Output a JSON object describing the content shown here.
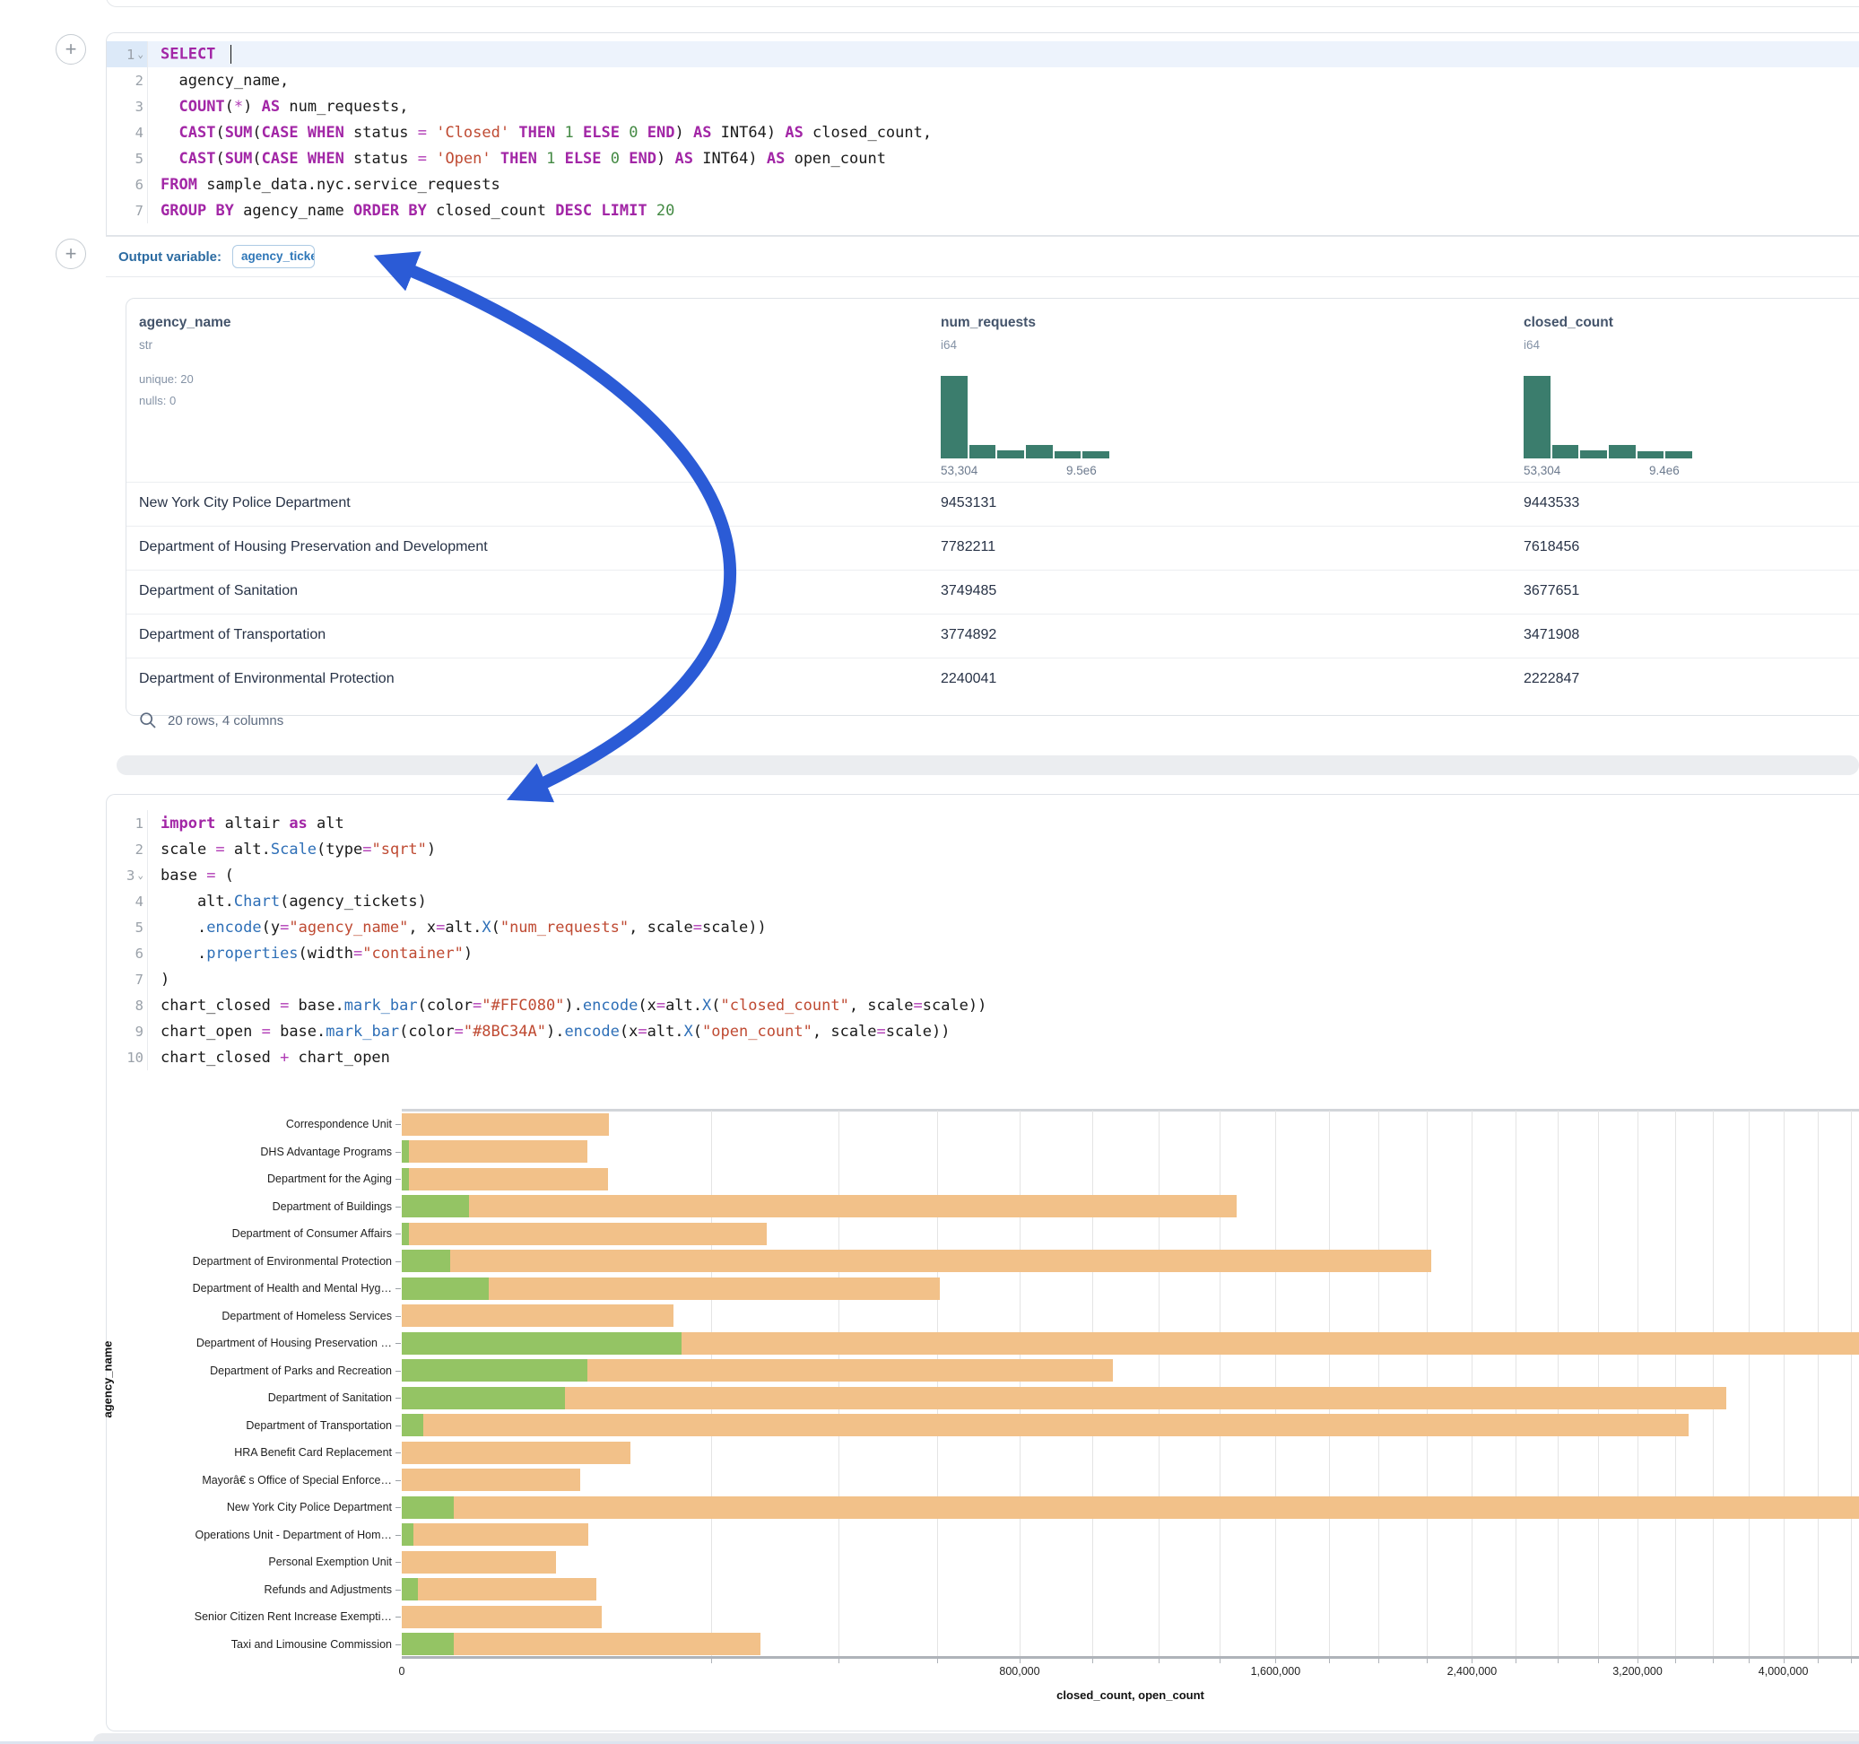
{
  "sql_cell": {
    "language": "sql",
    "lines": [
      {
        "num": "1",
        "fold": true,
        "hl": true,
        "cursor": true,
        "tokens": [
          [
            "k",
            "SELECT"
          ],
          [
            "p",
            " "
          ]
        ]
      },
      {
        "num": "2",
        "tokens": [
          [
            "p",
            "  agency_name,"
          ]
        ]
      },
      {
        "num": "3",
        "tokens": [
          [
            "p",
            "  "
          ],
          [
            "k",
            "COUNT"
          ],
          [
            "p",
            "("
          ],
          [
            "o",
            "*"
          ],
          [
            "p",
            ") "
          ],
          [
            "k",
            "AS"
          ],
          [
            "p",
            " num_requests,"
          ]
        ]
      },
      {
        "num": "4",
        "tokens": [
          [
            "p",
            "  "
          ],
          [
            "k",
            "CAST"
          ],
          [
            "p",
            "("
          ],
          [
            "k",
            "SUM"
          ],
          [
            "p",
            "("
          ],
          [
            "k",
            "CASE"
          ],
          [
            "p",
            " "
          ],
          [
            "k",
            "WHEN"
          ],
          [
            "p",
            " status "
          ],
          [
            "o",
            "="
          ],
          [
            "p",
            " "
          ],
          [
            "s",
            "'Closed'"
          ],
          [
            "p",
            " "
          ],
          [
            "k",
            "THEN"
          ],
          [
            "p",
            " "
          ],
          [
            "n",
            "1"
          ],
          [
            "p",
            " "
          ],
          [
            "k",
            "ELSE"
          ],
          [
            "p",
            " "
          ],
          [
            "n",
            "0"
          ],
          [
            "p",
            " "
          ],
          [
            "k",
            "END"
          ],
          [
            "p",
            ") "
          ],
          [
            "k",
            "AS"
          ],
          [
            "p",
            " INT64) "
          ],
          [
            "k",
            "AS"
          ],
          [
            "p",
            " closed_count,"
          ]
        ]
      },
      {
        "num": "5",
        "tokens": [
          [
            "p",
            "  "
          ],
          [
            "k",
            "CAST"
          ],
          [
            "p",
            "("
          ],
          [
            "k",
            "SUM"
          ],
          [
            "p",
            "("
          ],
          [
            "k",
            "CASE"
          ],
          [
            "p",
            " "
          ],
          [
            "k",
            "WHEN"
          ],
          [
            "p",
            " status "
          ],
          [
            "o",
            "="
          ],
          [
            "p",
            " "
          ],
          [
            "s",
            "'Open'"
          ],
          [
            "p",
            " "
          ],
          [
            "k",
            "THEN"
          ],
          [
            "p",
            " "
          ],
          [
            "n",
            "1"
          ],
          [
            "p",
            " "
          ],
          [
            "k",
            "ELSE"
          ],
          [
            "p",
            " "
          ],
          [
            "n",
            "0"
          ],
          [
            "p",
            " "
          ],
          [
            "k",
            "END"
          ],
          [
            "p",
            ") "
          ],
          [
            "k",
            "AS"
          ],
          [
            "p",
            " INT64) "
          ],
          [
            "k",
            "AS"
          ],
          [
            "p",
            " open_count"
          ]
        ]
      },
      {
        "num": "6",
        "tokens": [
          [
            "k",
            "FROM"
          ],
          [
            "p",
            " sample_data.nyc.service_requests"
          ]
        ]
      },
      {
        "num": "7",
        "tokens": [
          [
            "k",
            "GROUP"
          ],
          [
            "p",
            " "
          ],
          [
            "k",
            "BY"
          ],
          [
            "p",
            " agency_name "
          ],
          [
            "k",
            "ORDER"
          ],
          [
            "p",
            " "
          ],
          [
            "k",
            "BY"
          ],
          [
            "p",
            " closed_count "
          ],
          [
            "k",
            "DESC"
          ],
          [
            "p",
            " "
          ],
          [
            "k",
            "LIMIT"
          ],
          [
            "p",
            " "
          ],
          [
            "n",
            "20"
          ]
        ]
      }
    ]
  },
  "output_bar": {
    "label": "Output variable:",
    "variable": "agency_tickets"
  },
  "table": {
    "columns": [
      {
        "name": "agency_name",
        "dtype": "str",
        "stats": [
          "unique: 20",
          "nulls: 0"
        ],
        "x": 14
      },
      {
        "name": "num_requests",
        "dtype": "i64",
        "x": 908,
        "hist": {
          "bins": [
            1,
            0.16,
            0.1,
            0.16,
            0.09,
            0.09
          ],
          "min_label": "53,304",
          "max_label": "9.5e6"
        }
      },
      {
        "name": "closed_count",
        "dtype": "i64",
        "x": 1558,
        "hist": {
          "bins": [
            1,
            0.16,
            0.1,
            0.16,
            0.09,
            0.09
          ],
          "min_label": "53,304",
          "max_label": "9.4e6"
        }
      }
    ],
    "rows": [
      [
        "New York City Police Department",
        "9453131",
        "9443533"
      ],
      [
        "Department of Housing Preservation and Development",
        "7782211",
        "7618456"
      ],
      [
        "Department of Sanitation",
        "3749485",
        "3677651"
      ],
      [
        "Department of Transportation",
        "3774892",
        "3471908"
      ],
      [
        "Department of Environmental Protection",
        "2240041",
        "2222847"
      ]
    ],
    "footer": "20 rows, 4 columns"
  },
  "python_cell": {
    "language": "python",
    "lines": [
      {
        "num": "1",
        "tokens": [
          [
            "k",
            "import"
          ],
          [
            "p",
            " altair "
          ],
          [
            "k",
            "as"
          ],
          [
            "p",
            " alt"
          ]
        ]
      },
      {
        "num": "2",
        "tokens": [
          [
            "p",
            "scale "
          ],
          [
            "o",
            "="
          ],
          [
            "p",
            " alt."
          ],
          [
            "f",
            "Scale"
          ],
          [
            "p",
            "(type"
          ],
          [
            "o",
            "="
          ],
          [
            "s",
            "\"sqrt\""
          ],
          [
            "p",
            ")"
          ]
        ]
      },
      {
        "num": "3",
        "fold": true,
        "tokens": [
          [
            "p",
            "base "
          ],
          [
            "o",
            "="
          ],
          [
            "p",
            " ("
          ]
        ]
      },
      {
        "num": "4",
        "tokens": [
          [
            "p",
            "    alt."
          ],
          [
            "f",
            "Chart"
          ],
          [
            "p",
            "(agency_tickets)"
          ]
        ]
      },
      {
        "num": "5",
        "tokens": [
          [
            "p",
            "    ."
          ],
          [
            "f",
            "encode"
          ],
          [
            "p",
            "(y"
          ],
          [
            "o",
            "="
          ],
          [
            "s",
            "\"agency_name\""
          ],
          [
            "p",
            ", x"
          ],
          [
            "o",
            "="
          ],
          [
            "p",
            "alt."
          ],
          [
            "f",
            "X"
          ],
          [
            "p",
            "("
          ],
          [
            "s",
            "\"num_requests\""
          ],
          [
            "p",
            ", scale"
          ],
          [
            "o",
            "="
          ],
          [
            "p",
            "scale))"
          ]
        ]
      },
      {
        "num": "6",
        "tokens": [
          [
            "p",
            "    ."
          ],
          [
            "f",
            "properties"
          ],
          [
            "p",
            "(width"
          ],
          [
            "o",
            "="
          ],
          [
            "s",
            "\"container\""
          ],
          [
            "p",
            ")"
          ]
        ]
      },
      {
        "num": "7",
        "tokens": [
          [
            "p",
            ")"
          ]
        ]
      },
      {
        "num": "8",
        "tokens": [
          [
            "p",
            "chart_closed "
          ],
          [
            "o",
            "="
          ],
          [
            "p",
            " base."
          ],
          [
            "f",
            "mark_bar"
          ],
          [
            "p",
            "(color"
          ],
          [
            "o",
            "="
          ],
          [
            "s",
            "\"#FFC080\""
          ],
          [
            "p",
            ")."
          ],
          [
            "f",
            "encode"
          ],
          [
            "p",
            "(x"
          ],
          [
            "o",
            "="
          ],
          [
            "p",
            "alt."
          ],
          [
            "f",
            "X"
          ],
          [
            "p",
            "("
          ],
          [
            "s",
            "\"closed_count\""
          ],
          [
            "p",
            ", scale"
          ],
          [
            "o",
            "="
          ],
          [
            "p",
            "scale))"
          ]
        ]
      },
      {
        "num": "9",
        "tokens": [
          [
            "p",
            "chart_open "
          ],
          [
            "o",
            "="
          ],
          [
            "p",
            " base."
          ],
          [
            "f",
            "mark_bar"
          ],
          [
            "p",
            "(color"
          ],
          [
            "o",
            "="
          ],
          [
            "s",
            "\"#8BC34A\""
          ],
          [
            "p",
            ")."
          ],
          [
            "f",
            "encode"
          ],
          [
            "p",
            "(x"
          ],
          [
            "o",
            "="
          ],
          [
            "p",
            "alt."
          ],
          [
            "f",
            "X"
          ],
          [
            "p",
            "("
          ],
          [
            "s",
            "\"open_count\""
          ],
          [
            "p",
            ", scale"
          ],
          [
            "o",
            "="
          ],
          [
            "p",
            "scale))"
          ]
        ]
      },
      {
        "num": "10",
        "tokens": [
          [
            "p",
            "chart_closed "
          ],
          [
            "o",
            "+"
          ],
          [
            "p",
            " chart_open"
          ]
        ]
      }
    ]
  },
  "chart_data": {
    "type": "bar",
    "orientation": "horizontal",
    "layered": true,
    "x_scale": "sqrt",
    "xlabel": "closed_count, open_count",
    "ylabel": "agency_name",
    "x_ticks": [
      0,
      800000,
      1600000,
      2400000,
      3200000,
      4000000
    ],
    "x_tick_labels": [
      "0",
      "800,000",
      "1,600,000",
      "2,400,000",
      "3,200,000",
      "4,000,000"
    ],
    "gridline_step": 200000,
    "x_domain_max_at_right_edge": 4450000,
    "series": [
      {
        "name": "closed_count",
        "color": "#f2c189"
      },
      {
        "name": "open_count",
        "color": "#94c464"
      }
    ],
    "categories": [
      "Correspondence Unit",
      "DHS Advantage Programs",
      "Department for the Aging",
      "Department of Buildings",
      "Department of Consumer Affairs",
      "Department of Environmental Protection",
      "Department of Health and Mental Hyg…",
      "Department of Homeless Services",
      "Department of Housing Preservation …",
      "Department of Parks and Recreation",
      "Department of Sanitation",
      "Department of Transportation",
      "HRA Benefit Card Replacement",
      "Mayorâ€ s Office of Special Enforce…",
      "New York City Police Department",
      "Operations Unit - Department of Hom…",
      "Personal Exemption Unit",
      "Refunds and Adjustments",
      "Senior Citizen Rent Increase Exempti…",
      "Taxi and Limousine Commission"
    ],
    "closed_values": [
      90000,
      72000,
      89000,
      1460000,
      279000,
      2222847,
      606000,
      155000,
      7618456,
      1060000,
      3677651,
      3471908,
      110000,
      67000,
      9443533,
      73000,
      50000,
      79000,
      84000,
      270000
    ],
    "open_values": [
      0,
      100,
      100,
      9500,
      100,
      4900,
      16000,
      0,
      164000,
      72000,
      56000,
      1000,
      0,
      0,
      5700,
      300,
      0,
      550,
      0,
      5700
    ]
  },
  "annotation_arrow": {
    "color": "#2b5bd6"
  },
  "colors": {
    "hist_bar": "#3b7d6d",
    "orange_bar": "#f2c189",
    "green_bar": "#94c464"
  },
  "icons": {
    "add_cell": "+",
    "fold_chevron": "⌄"
  }
}
